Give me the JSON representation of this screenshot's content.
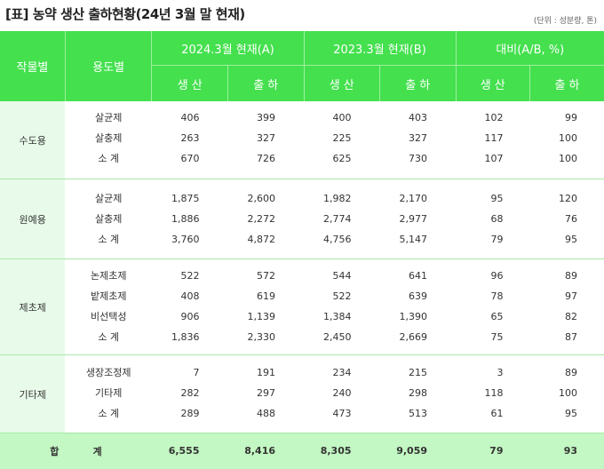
{
  "title": "[표] 농약 생산 출하현황(24년 3월 말 현재)",
  "unit_note": "(단위 : 성분량, 톤)",
  "header": {
    "crop": "작물별",
    "use": "용도별",
    "group_a": "2024.3월 현재(A)",
    "group_b": "2023.3월 현재(B)",
    "group_c": "대비(A/B, %)",
    "prod": "생 산",
    "ship": "출 하"
  },
  "sections": [
    {
      "crop": "수도용",
      "rows": [
        {
          "use": "살균제",
          "a_prod": "406",
          "a_ship": "399",
          "b_prod": "400",
          "b_ship": "403",
          "c_prod": "102",
          "c_ship": "99"
        },
        {
          "use": "살충제",
          "a_prod": "263",
          "a_ship": "327",
          "b_prod": "225",
          "b_ship": "327",
          "c_prod": "117",
          "c_ship": "100"
        },
        {
          "use": "소  계",
          "a_prod": "670",
          "a_ship": "726",
          "b_prod": "625",
          "b_ship": "730",
          "c_prod": "107",
          "c_ship": "100"
        }
      ]
    },
    {
      "crop": "원예용",
      "rows": [
        {
          "use": "살균제",
          "a_prod": "1,875",
          "a_ship": "2,600",
          "b_prod": "1,982",
          "b_ship": "2,170",
          "c_prod": "95",
          "c_ship": "120"
        },
        {
          "use": "살충제",
          "a_prod": "1,886",
          "a_ship": "2,272",
          "b_prod": "2,774",
          "b_ship": "2,977",
          "c_prod": "68",
          "c_ship": "76"
        },
        {
          "use": "소  계",
          "a_prod": "3,760",
          "a_ship": "4,872",
          "b_prod": "4,756",
          "b_ship": "5,147",
          "c_prod": "79",
          "c_ship": "95"
        }
      ]
    },
    {
      "crop": "제초제",
      "rows": [
        {
          "use": "논제초제",
          "a_prod": "522",
          "a_ship": "572",
          "b_prod": "544",
          "b_ship": "641",
          "c_prod": "96",
          "c_ship": "89"
        },
        {
          "use": "밭제초제",
          "a_prod": "408",
          "a_ship": "619",
          "b_prod": "522",
          "b_ship": "639",
          "c_prod": "78",
          "c_ship": "97"
        },
        {
          "use": "비선택성",
          "a_prod": "906",
          "a_ship": "1,139",
          "b_prod": "1,384",
          "b_ship": "1,390",
          "c_prod": "65",
          "c_ship": "82"
        },
        {
          "use": "소  계",
          "a_prod": "1,836",
          "a_ship": "2,330",
          "b_prod": "2,450",
          "b_ship": "2,669",
          "c_prod": "75",
          "c_ship": "87"
        }
      ]
    },
    {
      "crop": "기타제",
      "rows": [
        {
          "use": "생장조정제",
          "a_prod": "7",
          "a_ship": "191",
          "b_prod": "234",
          "b_ship": "215",
          "c_prod": "3",
          "c_ship": "89"
        },
        {
          "use": "기타제",
          "a_prod": "282",
          "a_ship": "297",
          "b_prod": "240",
          "b_ship": "298",
          "c_prod": "118",
          "c_ship": "100"
        },
        {
          "use": "소  계",
          "a_prod": "289",
          "a_ship": "488",
          "b_prod": "473",
          "b_ship": "513",
          "c_prod": "61",
          "c_ship": "95"
        }
      ]
    }
  ],
  "total": {
    "label": "합          계",
    "a_prod": "6,555",
    "a_ship": "8,416",
    "b_prod": "8,305",
    "b_ship": "9,059",
    "c_prod": "79",
    "c_ship": "93"
  },
  "colors": {
    "header_bg": "#44e04e",
    "category_bg": "#e8faea",
    "total_bg": "#c3f7c3"
  }
}
